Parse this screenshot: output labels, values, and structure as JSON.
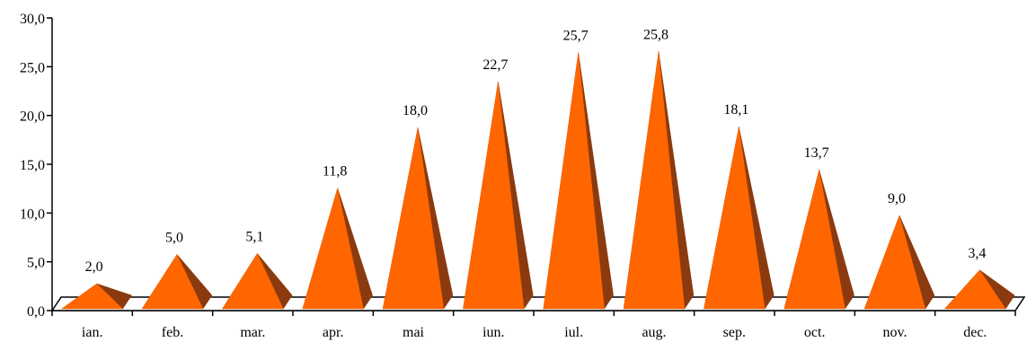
{
  "chart_data": {
    "type": "bar",
    "bar_shape": "pyramid-3d",
    "categories": [
      "ian.",
      "feb.",
      "mar.",
      "apr.",
      "mai",
      "iun.",
      "iul.",
      "aug.",
      "sep.",
      "oct.",
      "nov.",
      "dec."
    ],
    "values": [
      2.0,
      5.0,
      5.1,
      11.8,
      18.0,
      22.7,
      25.7,
      25.8,
      18.1,
      13.7,
      9.0,
      3.4
    ],
    "value_labels": [
      "2,0",
      "5,0",
      "5,1",
      "11,8",
      "18,0",
      "22,7",
      "25,7",
      "25,8",
      "18,1",
      "13,7",
      "9,0",
      "3,4"
    ],
    "y_ticks": [
      "0,0",
      "5,0",
      "10,0",
      "15,0",
      "20,0",
      "25,0",
      "30,0"
    ],
    "ylim": [
      0,
      30
    ],
    "grid": false,
    "legend": "none",
    "title": "",
    "xlabel": "",
    "ylabel": "",
    "colors": {
      "front": "#FF6600",
      "side": "#8B3A0F",
      "axis": "#000000",
      "floor": "#000000"
    }
  }
}
